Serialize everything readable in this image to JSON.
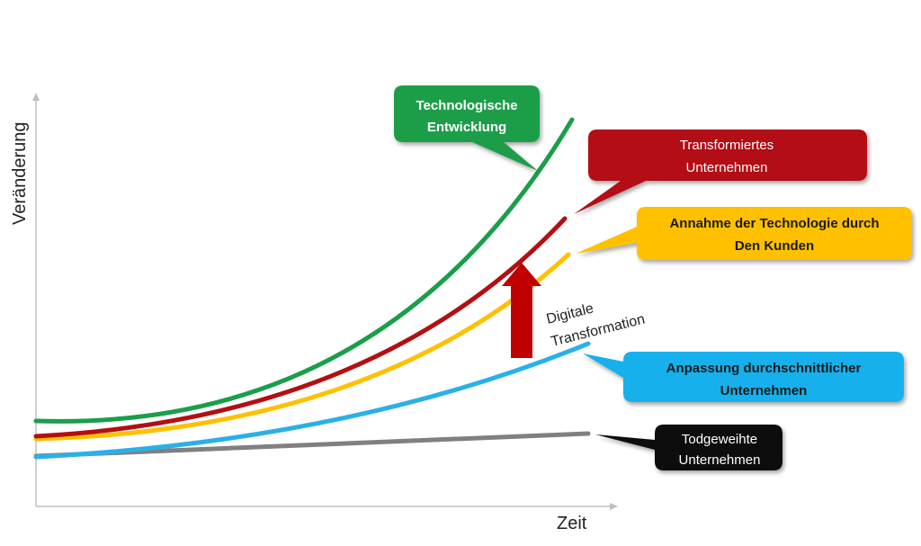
{
  "axes": {
    "y_label": "Veränderung",
    "x_label": "Zeit"
  },
  "curves": [
    {
      "id": "technology",
      "color": "#1a9e4a"
    },
    {
      "id": "transformed",
      "color": "#b30f12"
    },
    {
      "id": "customers",
      "color": "#ffc000"
    },
    {
      "id": "average",
      "color": "#2ab0e8"
    },
    {
      "id": "doomed",
      "color": "#808080"
    }
  ],
  "callouts": {
    "technology": {
      "line1": "Technologische",
      "line2": "Entwicklung",
      "fill": "#1a9e4a",
      "text_color": "#ffffff"
    },
    "transformed": {
      "line1": "Transformiertes",
      "line2": "Unternehmen",
      "fill": "#b30f12",
      "text_color": "#ffffff"
    },
    "customers": {
      "line1": "Annahme der Technologie durch",
      "line2": "Den Kunden",
      "fill": "#ffc000",
      "text_color": "#1a1a1a"
    },
    "average": {
      "line1": "Anpassung durchschnittlicher",
      "line2": "Unternehmen",
      "fill": "#16b0ec",
      "text_color": "#1a1a1a"
    },
    "doomed": {
      "line1": "Todgeweihte",
      "line2": "Unternehmen",
      "fill": "#0a0a0a",
      "text_color": "#ffffff"
    }
  },
  "transformation_arrow": {
    "line1": "Digitale",
    "line2": "Transformation",
    "color": "#c00000"
  }
}
